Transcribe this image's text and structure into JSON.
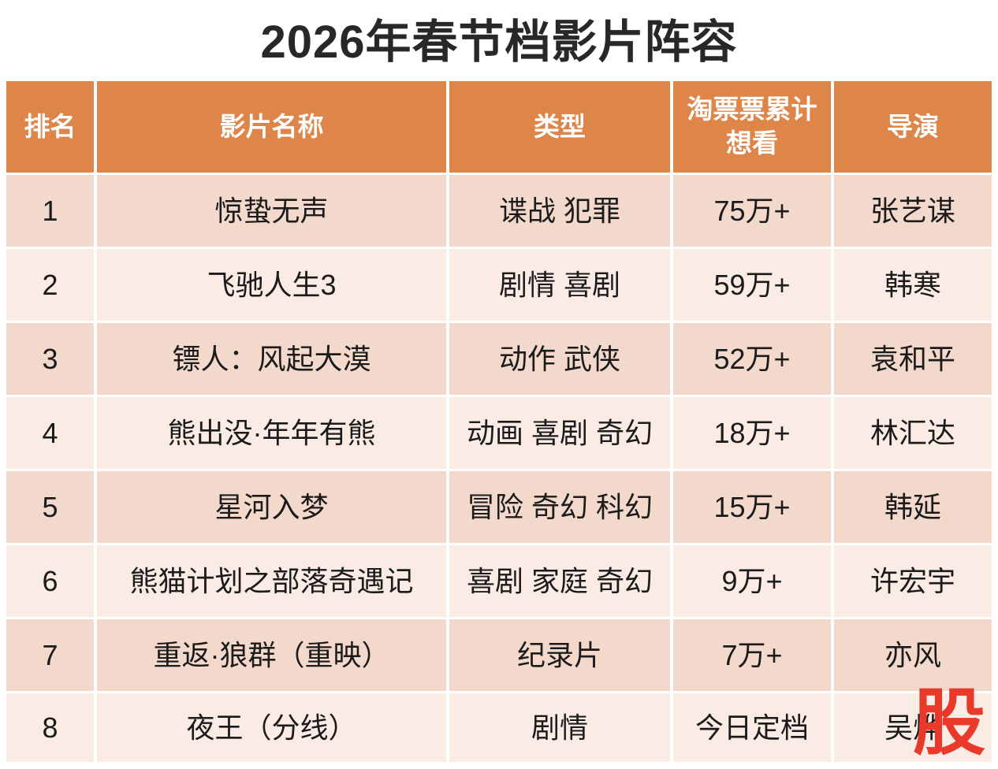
{
  "page": {
    "title": "2026年春节档影片阵容"
  },
  "colors": {
    "header_bg": "#de8549",
    "row_odd_bg": "#f3d8cc",
    "row_even_bg": "#faebe5",
    "divider": "#ffffff",
    "title_color": "#282828",
    "text_color": "#1b1b1b",
    "header_text_color": "#ffffff",
    "watermark_color": "#e8392b"
  },
  "watermark": {
    "text": "股"
  },
  "chart_data": {
    "type": "table",
    "title": "2026年春节档影片阵容",
    "columns": [
      "排名",
      "影片名称",
      "类型",
      "淘票票累计\n想看",
      "导演"
    ],
    "rows": [
      [
        "1",
        "惊蛰无声",
        "谍战 犯罪",
        "75万+",
        "张艺谋"
      ],
      [
        "2",
        "飞驰人生3",
        "剧情 喜剧",
        "59万+",
        "韩寒"
      ],
      [
        "3",
        "镖人：风起大漠",
        "动作 武侠",
        "52万+",
        "袁和平"
      ],
      [
        "4",
        "熊出没·年年有熊",
        "动画 喜剧 奇幻",
        "18万+",
        "林汇达"
      ],
      [
        "5",
        "星河入梦",
        "冒险 奇幻 科幻",
        "15万+",
        "韩延"
      ],
      [
        "6",
        "熊猫计划之部落奇遇记",
        "喜剧 家庭 奇幻",
        "9万+",
        "许宏宇"
      ],
      [
        "7",
        "重返·狼群（重映）",
        "纪录片",
        "7万+",
        "亦风"
      ],
      [
        "8",
        "夜王（分线）",
        "剧情",
        "今日定档",
        "吴烨"
      ]
    ],
    "want_see_values_wan": [
      75,
      59,
      52,
      18,
      15,
      9,
      7,
      null
    ],
    "notes": "row 8 want-see shows text 今日定档 instead of a number"
  }
}
